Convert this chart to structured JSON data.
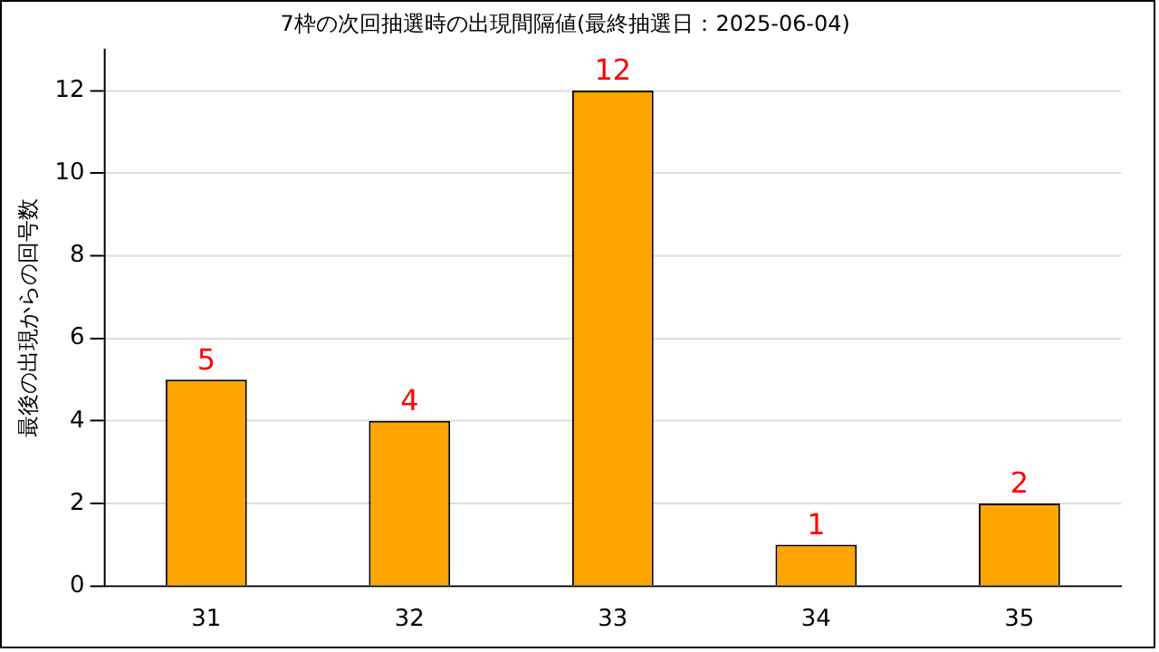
{
  "chart_data": {
    "type": "bar",
    "title": "7枠の次回抽選時の出現間隔値(最終抽選日：2025-06-04)",
    "ylabel": "最後の出現からの回号数",
    "categories": [
      "31",
      "32",
      "33",
      "34",
      "35"
    ],
    "values": [
      5,
      4,
      12,
      1,
      2
    ],
    "color": "#ffa500",
    "ylim": [
      0,
      13
    ],
    "yticks": [
      0,
      2,
      4,
      6,
      8,
      10,
      12
    ],
    "grid": "y",
    "data_labels": true,
    "legend": false
  }
}
